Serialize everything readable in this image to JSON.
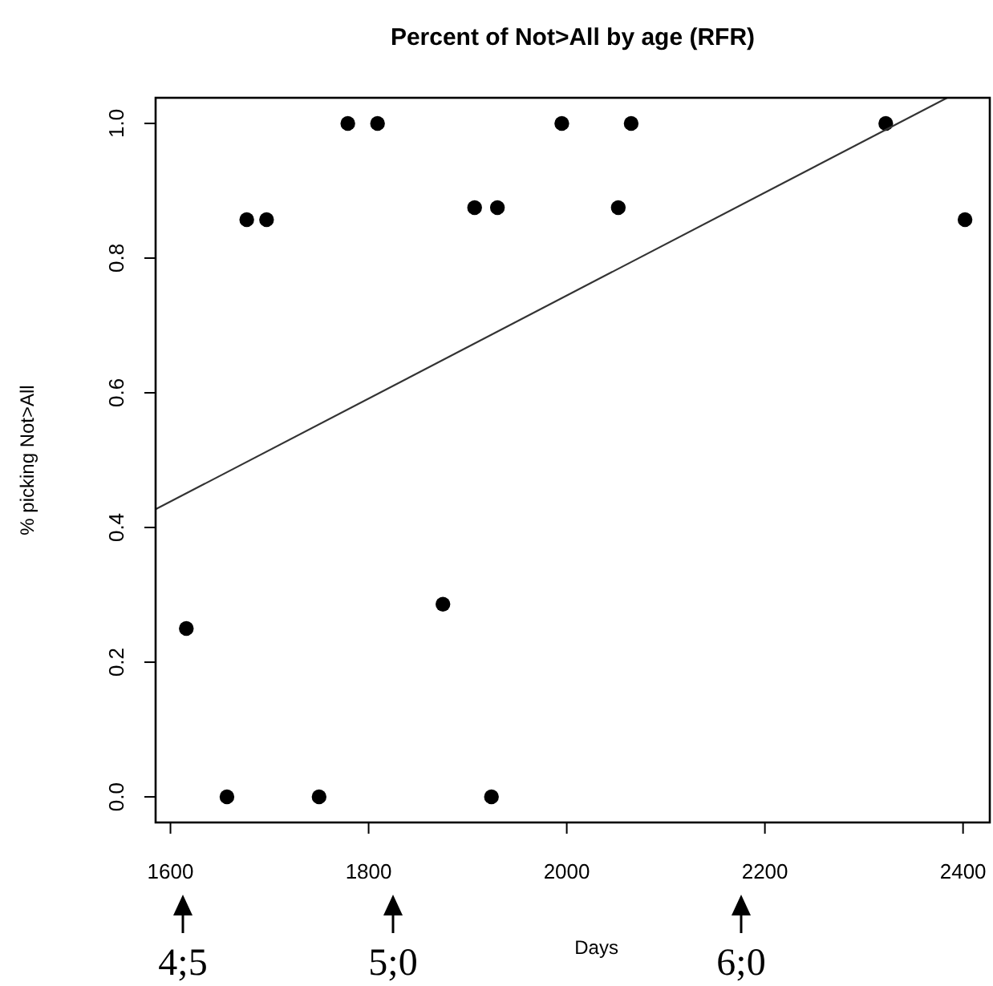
{
  "chart_data": {
    "type": "scatter",
    "title": "Percent of Not>All by age (RFR)",
    "xlabel": "Days",
    "ylabel": "% picking Not>All",
    "xlim": [
      1585,
      2427
    ],
    "ylim": [
      -0.038,
      1.038
    ],
    "xticks": [
      1600,
      1800,
      2000,
      2200,
      2400
    ],
    "yticks": [
      {
        "value": 0,
        "label": "0.0"
      },
      0.2,
      0.4,
      0.6,
      0.8,
      {
        "value": 1,
        "label": "1.0"
      }
    ],
    "grid": false,
    "series": [
      {
        "marker": "circle",
        "color": "#000000",
        "x": [
          1616,
          1657,
          1677,
          1697,
          1750,
          1779,
          1809,
          1875,
          1907,
          1924,
          1930,
          1995,
          2052,
          2065,
          2322,
          2402
        ],
        "values": [
          0.25,
          0,
          0.857,
          0.857,
          0,
          1,
          1,
          0.286,
          0.875,
          0,
          0.875,
          1,
          0.875,
          1,
          1,
          0.857
        ]
      },
      {
        "type": "line",
        "color": "#333333",
        "x": [
          1585,
          2384
        ],
        "values": [
          0.427,
          1.038
        ]
      }
    ],
    "annotations": [
      "4;5",
      "5;0",
      "6;0"
    ]
  }
}
